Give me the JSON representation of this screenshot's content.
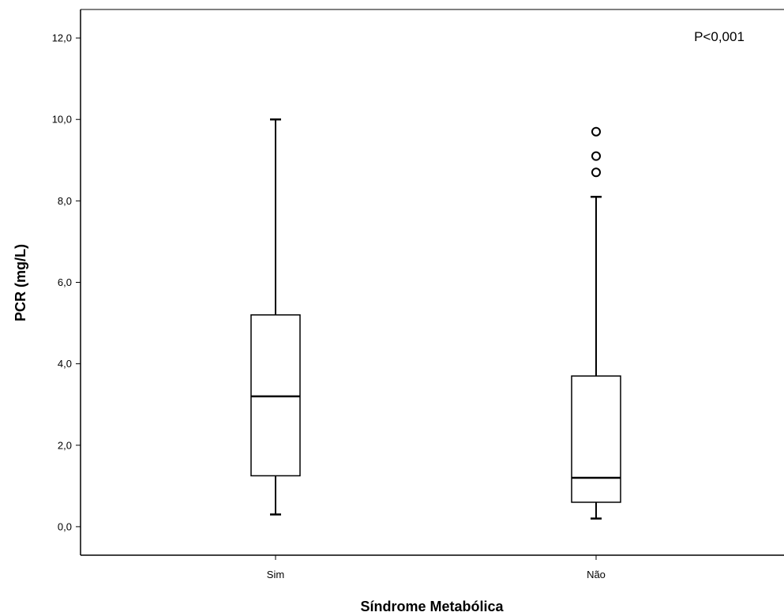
{
  "chart_data": {
    "type": "boxplot",
    "xlabel": "Síndrome Metabólica",
    "ylabel": "PCR (mg/L)",
    "ylim": [
      -0.7,
      12.7
    ],
    "yticks": [
      0,
      2,
      4,
      6,
      8,
      10,
      12
    ],
    "ytick_labels": [
      "0,0",
      "2,0",
      "4,0",
      "6,0",
      "8,0",
      "10,0",
      "12,0"
    ],
    "categories": [
      "Sim",
      "Não"
    ],
    "boxes": [
      {
        "category": "Sim",
        "min": 0.3,
        "q1": 1.25,
        "median": 3.2,
        "q3": 5.2,
        "max": 10.0,
        "outliers": []
      },
      {
        "category": "Não",
        "min": 0.2,
        "q1": 0.6,
        "median": 1.2,
        "q3": 3.7,
        "max": 8.1,
        "outliers": [
          8.7,
          9.1,
          9.7
        ]
      }
    ],
    "annotation": "P<0,001",
    "grid": false,
    "legend": "none",
    "colors": {
      "box_fill": "#ffffff",
      "stroke": "#000000",
      "background": "#ffffff"
    }
  }
}
